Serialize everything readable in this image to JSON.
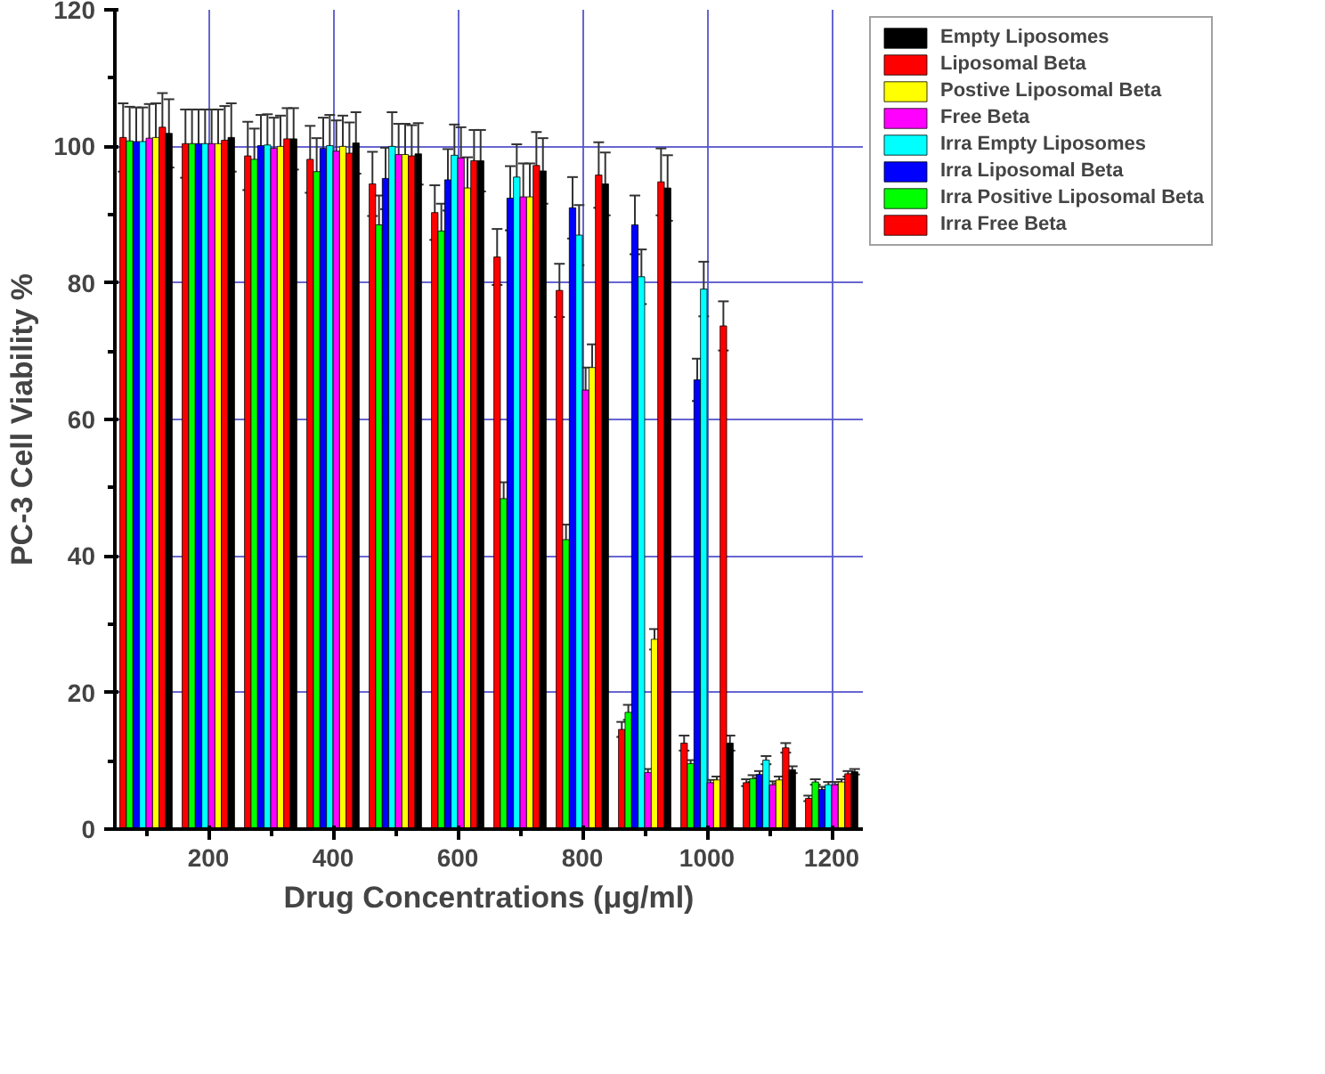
{
  "chart_data": {
    "type": "bar",
    "xlabel": "Drug Concentrations (μg/ml)",
    "ylabel": "PC-3 Cell Viability %",
    "x": [
      100,
      200,
      300,
      400,
      500,
      600,
      700,
      800,
      900,
      1000,
      1100,
      1200
    ],
    "xlim": [
      50,
      1250
    ],
    "ylim": [
      0,
      120
    ],
    "xticks": [
      {
        "value": 100,
        "label": null
      },
      200,
      {
        "value": 300,
        "label": null
      },
      400,
      {
        "value": 500,
        "label": null
      },
      600,
      {
        "value": 700,
        "label": null
      },
      800,
      {
        "value": 900,
        "label": null
      },
      1000,
      {
        "value": 1100,
        "label": null
      },
      1200
    ],
    "yticks": [
      0,
      {
        "value": 10,
        "label": null
      },
      20,
      {
        "value": 30,
        "label": null
      },
      40,
      {
        "value": 50,
        "label": null
      },
      60,
      {
        "value": 70,
        "label": null
      },
      80,
      {
        "value": 90,
        "label": null
      },
      100,
      {
        "value": 110,
        "label": null
      },
      120
    ],
    "grid": true,
    "legend": "top right",
    "series": [
      {
        "name": "Irra Free Beta",
        "color": "#ff0000",
        "values": [
          101.3,
          100.4,
          98.6,
          98.1,
          94.5,
          90.3,
          83.8,
          78.9,
          14.6,
          12.6,
          6.8,
          4.5
        ],
        "errors": [
          5.0,
          5.0,
          5.0,
          4.9,
          4.7,
          4.0,
          4.1,
          3.9,
          1.1,
          1.1,
          0.5,
          0.4
        ]
      },
      {
        "name": "Irra Positive Liposomal Beta",
        "color": "#00ff00",
        "values": [
          100.8,
          100.4,
          98.1,
          96.3,
          88.5,
          87.6,
          48.4,
          42.4,
          17.1,
          9.6,
          7.4,
          6.9
        ],
        "errors": [
          5.0,
          5.0,
          4.5,
          4.9,
          4.3,
          4.0,
          2.4,
          2.2,
          1.1,
          0.5,
          0.5,
          0.4
        ]
      },
      {
        "name": "Irra Liposomal Beta",
        "color": "#0000ff",
        "values": [
          100.7,
          100.4,
          100.1,
          99.7,
          95.3,
          95.1,
          92.4,
          91.0,
          88.5,
          65.8,
          8.0,
          5.8
        ],
        "errors": [
          5.0,
          5.0,
          4.5,
          4.5,
          4.5,
          4.5,
          4.7,
          4.5,
          4.3,
          3.1,
          0.5,
          0.4
        ]
      },
      {
        "name": "Irra Empty Liposomes",
        "color": "#00ffff",
        "values": [
          100.7,
          100.4,
          100.2,
          100.1,
          100.0,
          98.7,
          95.5,
          87.0,
          80.9,
          79.1,
          10.1,
          6.5
        ],
        "errors": [
          5.0,
          5.0,
          4.5,
          4.5,
          5.0,
          4.5,
          4.8,
          4.4,
          4.0,
          4.0,
          0.6,
          0.4
        ]
      },
      {
        "name": "Free Beta",
        "color": "#ff00ff",
        "values": [
          101.2,
          100.4,
          99.7,
          99.3,
          98.8,
          98.3,
          92.6,
          64.3,
          8.3,
          6.8,
          6.5,
          6.5
        ],
        "errors": [
          5.0,
          5.0,
          4.5,
          4.5,
          4.5,
          4.5,
          4.9,
          3.3,
          0.5,
          0.4,
          0.5,
          0.4
        ]
      },
      {
        "name": "Postive Liposomal Beta",
        "color": "#ffff00",
        "values": [
          101.3,
          100.4,
          100.0,
          100.0,
          98.8,
          93.9,
          92.6,
          67.6,
          27.8,
          7.2,
          7.2,
          6.9
        ],
        "errors": [
          5.0,
          5.0,
          4.5,
          4.5,
          4.5,
          4.5,
          4.9,
          3.4,
          1.5,
          0.5,
          0.5,
          0.4
        ]
      },
      {
        "name": "Liposomal Beta",
        "color": "#ff0000",
        "values": [
          102.8,
          100.9,
          101.1,
          99.0,
          98.6,
          97.9,
          97.2,
          95.8,
          94.8,
          73.7,
          11.9,
          8.1
        ],
        "errors": [
          5.0,
          5.0,
          4.5,
          4.5,
          4.5,
          4.5,
          4.9,
          4.8,
          4.9,
          3.6,
          0.7,
          0.4
        ]
      },
      {
        "name": "Empty Liposomes",
        "color": "#000000",
        "values": [
          101.9,
          101.3,
          101.1,
          100.5,
          98.9,
          97.9,
          96.4,
          94.5,
          93.9,
          12.6,
          8.7,
          8.4
        ],
        "errors": [
          5.0,
          5.0,
          4.5,
          4.5,
          4.5,
          4.5,
          4.8,
          4.6,
          4.8,
          1.1,
          0.5,
          0.4
        ]
      }
    ]
  }
}
